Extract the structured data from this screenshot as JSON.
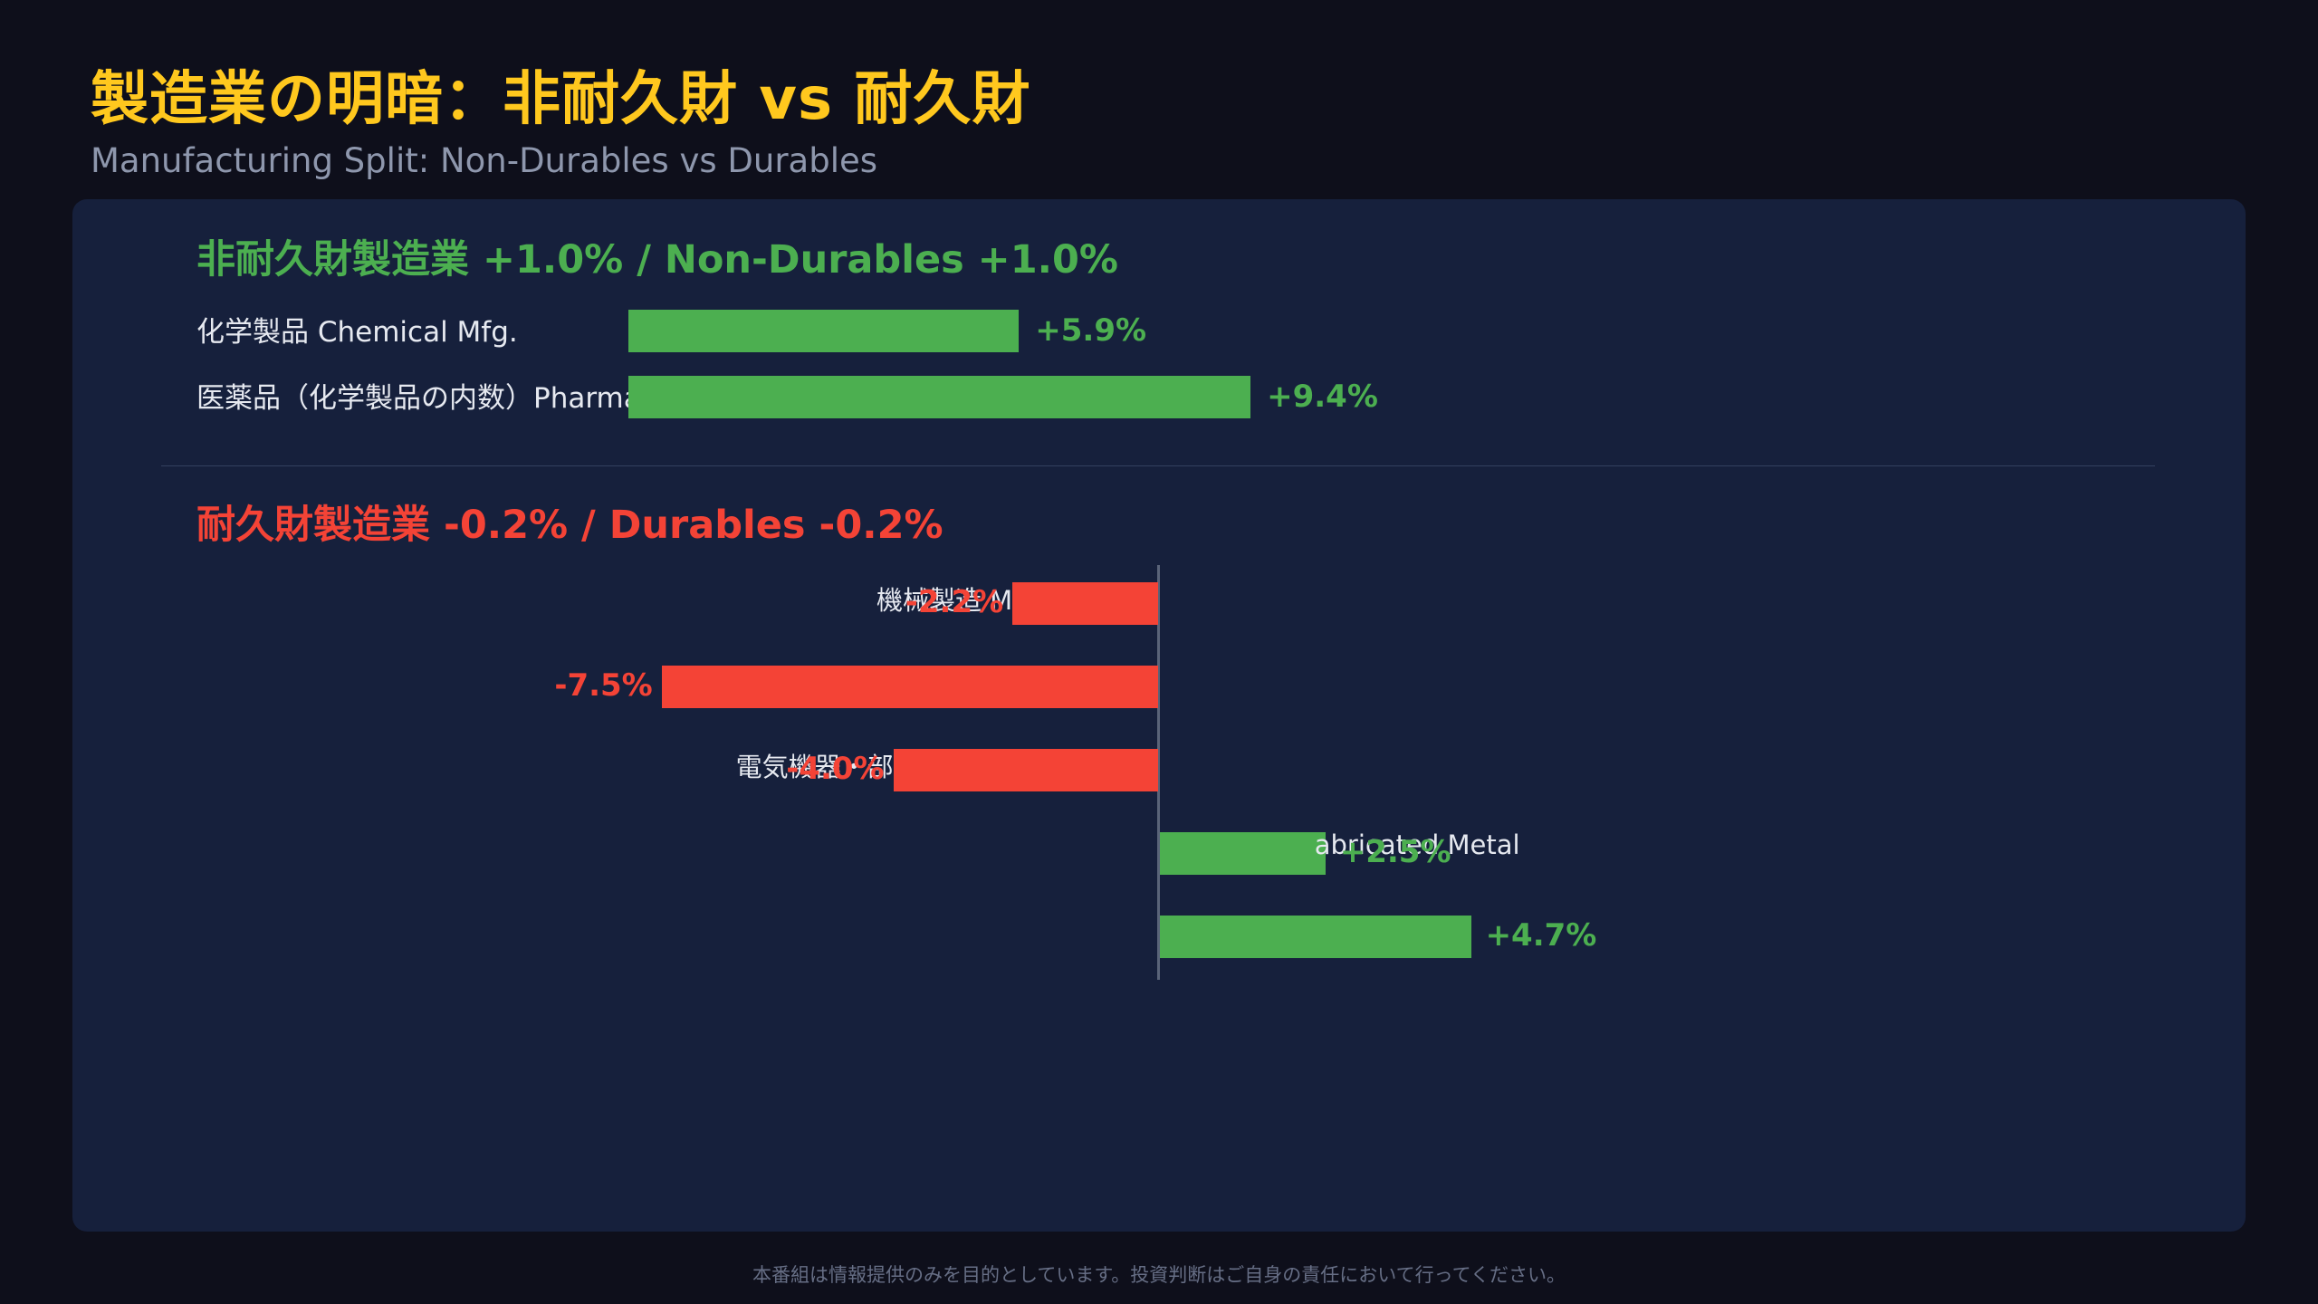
{
  "header": {
    "title": "製造業の明暗：非耐久財 vs 耐久財",
    "subtitle": "Manufacturing Split: Non-Durables vs Durables"
  },
  "footer": {
    "disclaimer": "本番組は情報提供のみを目的としています。投資判断はご自身の責任において行ってください。"
  },
  "colors": {
    "positive": "#4caf50",
    "negative": "#f44336",
    "title": "#ffc81e",
    "panel": "#16203c",
    "background": "#0e0f1b"
  },
  "chart_data": [
    {
      "type": "bar",
      "orientation": "horizontal",
      "title": "非耐久財製造業 +1.0% / Non-Durables +1.0%",
      "categories": [
        "化学製品 Chemical Mfg.",
        "医薬品（化学製品の内数）Pharma"
      ],
      "values": [
        5.9,
        9.4
      ],
      "value_labels": [
        "+5.9%",
        "+9.4%"
      ],
      "unit": "%"
    },
    {
      "type": "bar",
      "orientation": "horizontal",
      "title": "耐久財製造業 -0.2% / Durables -0.2%",
      "categories": [
        "機械製造 M",
        "",
        "電気機器・部",
        "abricated Metal",
        ""
      ],
      "values": [
        -2.2,
        -7.5,
        -4.0,
        2.5,
        4.7
      ],
      "value_labels": [
        "-2.2%",
        "-7.5%",
        "-4.0%",
        "+2.5%",
        "+4.7%"
      ],
      "unit": "%"
    }
  ]
}
